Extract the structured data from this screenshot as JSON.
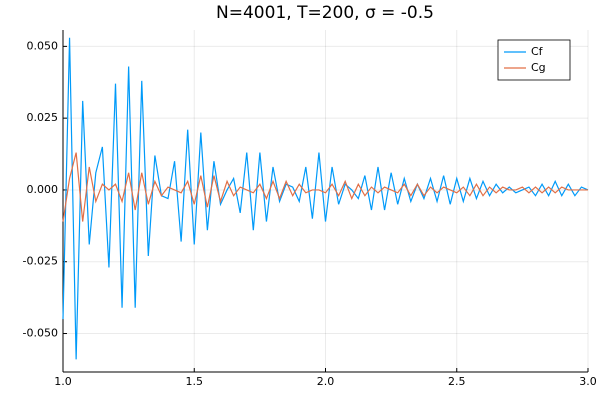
{
  "chart_data": {
    "type": "line",
    "title": "N=4001, T=200, σ = -0.5",
    "x": [
      1.0,
      1.025,
      1.05,
      1.075,
      1.1,
      1.125,
      1.15,
      1.175,
      1.2,
      1.225,
      1.25,
      1.275,
      1.3,
      1.325,
      1.35,
      1.375,
      1.4,
      1.425,
      1.45,
      1.475,
      1.5,
      1.525,
      1.55,
      1.575,
      1.6,
      1.625,
      1.65,
      1.675,
      1.7,
      1.725,
      1.75,
      1.775,
      1.8,
      1.825,
      1.85,
      1.875,
      1.9,
      1.925,
      1.95,
      1.975,
      2.0,
      2.025,
      2.05,
      2.075,
      2.1,
      2.125,
      2.15,
      2.175,
      2.2,
      2.225,
      2.25,
      2.275,
      2.3,
      2.325,
      2.35,
      2.375,
      2.4,
      2.425,
      2.45,
      2.475,
      2.5,
      2.525,
      2.55,
      2.575,
      2.6,
      2.625,
      2.65,
      2.675,
      2.7,
      2.725,
      2.75,
      2.775,
      2.8,
      2.825,
      2.85,
      2.875,
      2.9,
      2.925,
      2.95,
      2.975,
      3.0
    ],
    "series": [
      {
        "name": "Cf",
        "color": "#009af9",
        "values": [
          -0.045,
          0.053,
          -0.059,
          0.031,
          -0.019,
          0.006,
          0.015,
          -0.027,
          0.037,
          -0.041,
          0.043,
          -0.041,
          0.038,
          -0.023,
          0.012,
          -0.002,
          -0.003,
          0.01,
          -0.018,
          0.021,
          -0.019,
          0.02,
          -0.014,
          0.01,
          -0.005,
          0.0,
          0.004,
          -0.008,
          0.013,
          -0.014,
          0.013,
          -0.011,
          0.008,
          -0.004,
          0.002,
          0.001,
          -0.004,
          0.008,
          -0.01,
          0.013,
          -0.011,
          0.008,
          -0.005,
          0.002,
          0.0,
          -0.003,
          0.005,
          -0.007,
          0.008,
          -0.007,
          0.006,
          -0.005,
          0.004,
          -0.004,
          0.002,
          -0.003,
          0.004,
          -0.004,
          0.005,
          -0.005,
          0.004,
          -0.004,
          0.004,
          -0.003,
          0.003,
          -0.002,
          0.002,
          -0.001,
          0.001,
          -0.001,
          0.0,
          0.001,
          -0.002,
          0.002,
          -0.002,
          0.003,
          -0.002,
          0.002,
          -0.002,
          0.001,
          0.0
        ]
      },
      {
        "name": "Cg",
        "color": "#e26f46",
        "values": [
          -0.011,
          0.004,
          0.013,
          -0.011,
          0.008,
          -0.004,
          0.002,
          0.0,
          0.002,
          -0.004,
          0.006,
          -0.007,
          0.006,
          -0.005,
          0.003,
          -0.002,
          0.001,
          0.0,
          -0.001,
          0.003,
          -0.005,
          0.005,
          -0.006,
          0.005,
          -0.004,
          0.003,
          -0.002,
          0.001,
          0.0,
          -0.001,
          0.002,
          -0.003,
          0.003,
          -0.003,
          0.003,
          -0.002,
          0.002,
          -0.001,
          0.0,
          0.0,
          -0.001,
          0.002,
          -0.002,
          0.003,
          -0.003,
          0.002,
          -0.002,
          0.001,
          -0.001,
          0.001,
          0.0,
          -0.001,
          0.002,
          -0.002,
          0.002,
          -0.002,
          0.001,
          -0.001,
          0.001,
          0.0,
          -0.001,
          0.001,
          -0.002,
          0.002,
          -0.002,
          0.001,
          -0.001,
          0.001,
          0.0,
          0.0,
          0.001,
          -0.001,
          0.001,
          -0.001,
          0.001,
          -0.001,
          0.001,
          0.0,
          0.0,
          0.0,
          0.0
        ]
      }
    ],
    "xlim": [
      1,
      3
    ],
    "ylim": [
      -0.0634,
      0.0557
    ],
    "xticks": [
      {
        "value": 1,
        "label": "1.0"
      },
      {
        "value": 1.5,
        "label": "1.5"
      },
      {
        "value": 2,
        "label": "2.0"
      },
      {
        "value": 2.5,
        "label": "2.5"
      },
      {
        "value": 3,
        "label": "3.0"
      }
    ],
    "yticks": [
      {
        "value": -0.05,
        "label": "-0.050"
      },
      {
        "value": -0.025,
        "label": "-0.025"
      },
      {
        "value": 0,
        "label": "0.000"
      },
      {
        "value": 0.025,
        "label": "0.025"
      },
      {
        "value": 0.05,
        "label": "0.050"
      }
    ],
    "grid": true,
    "legend": "top-right"
  }
}
